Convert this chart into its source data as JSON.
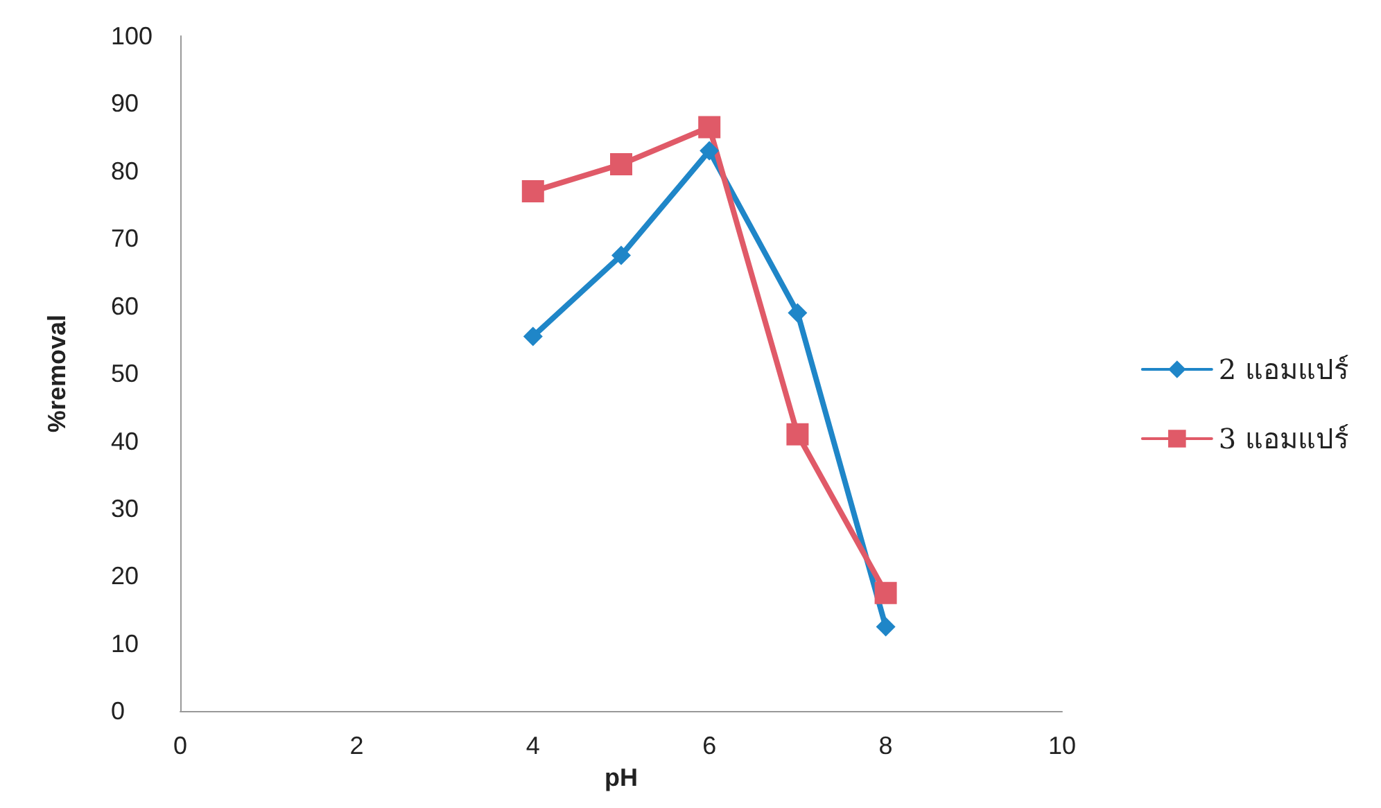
{
  "chart_data": {
    "type": "line",
    "xlabel": "pH",
    "ylabel": "%removal",
    "xlim": [
      0,
      10
    ],
    "xticks": [
      0,
      2,
      4,
      6,
      8,
      10
    ],
    "ylim": [
      0,
      100
    ],
    "yticks": [
      0,
      10,
      20,
      30,
      40,
      50,
      60,
      70,
      80,
      90,
      100
    ],
    "x": [
      4,
      5,
      6,
      7,
      8
    ],
    "grid": false,
    "legend": "right",
    "line_style": "solid",
    "series": [
      {
        "name": "2 แอมแปร์",
        "color": "#1f86c8",
        "marker": "diamond",
        "values": [
          55.5,
          67.5,
          83,
          59,
          12.5
        ]
      },
      {
        "name": "3 แอมแปร์",
        "color": "#e05a68",
        "marker": "square",
        "values": [
          77,
          81,
          86.5,
          41,
          17.5
        ]
      }
    ]
  }
}
